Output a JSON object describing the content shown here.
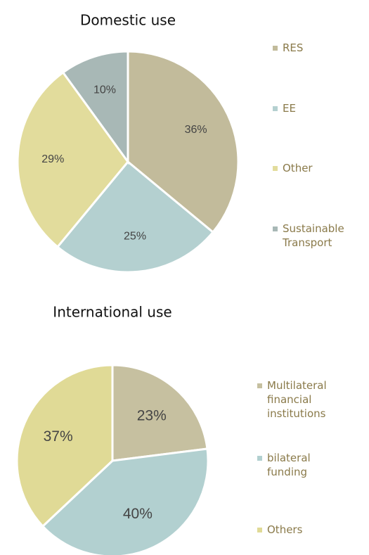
{
  "chart_data": [
    {
      "type": "pie",
      "title": "Domestic use",
      "categories": [
        "RES",
        "EE",
        "Other",
        "Sustainable Transport"
      ],
      "values": [
        36,
        25,
        29,
        10
      ],
      "value_labels": [
        "36%",
        "25%",
        "29%",
        "10%"
      ],
      "colors": [
        "#c2bb9b",
        "#b4d0d0",
        "#e2dc9c",
        "#a8b8b6"
      ],
      "legend": "right"
    },
    {
      "type": "pie",
      "title": "International use",
      "categories": [
        "Multilateral financial institutions",
        "bilateral funding",
        "Others"
      ],
      "values": [
        23,
        40,
        37
      ],
      "value_labels": [
        "23%",
        "40%",
        "37%"
      ],
      "colors": [
        "#c6c0a0",
        "#b2d0d0",
        "#e0da96"
      ],
      "legend": "right"
    }
  ]
}
